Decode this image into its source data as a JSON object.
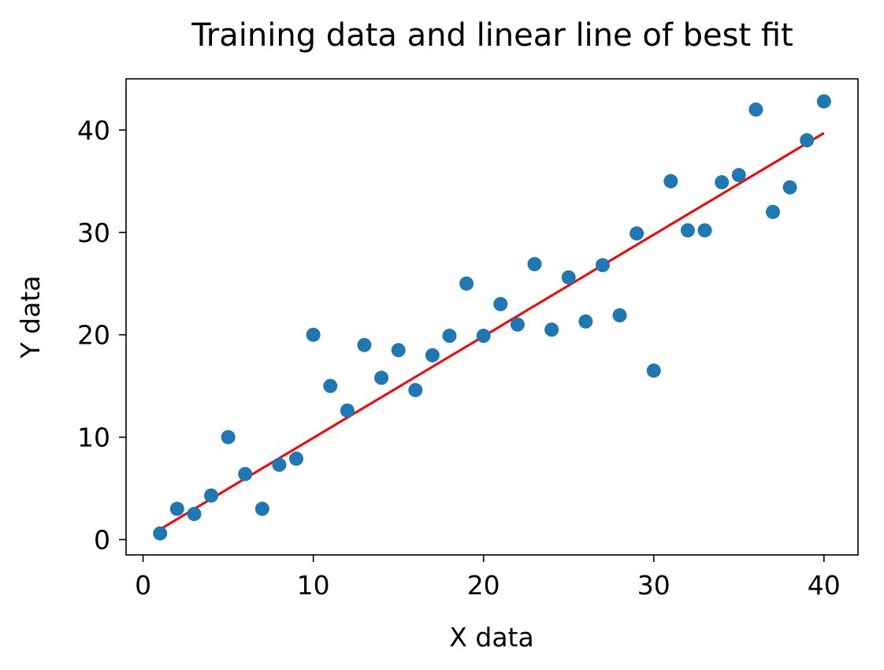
{
  "chart_data": {
    "type": "scatter",
    "title": "Training data and linear line of best fit",
    "xlabel": "X data",
    "ylabel": "Y data",
    "xlim": [
      -1,
      42
    ],
    "ylim": [
      -1.5,
      45
    ],
    "xticks": [
      0,
      10,
      20,
      30,
      40
    ],
    "yticks": [
      0,
      10,
      20,
      30,
      40
    ],
    "grid": false,
    "series": [
      {
        "kind": "scatter",
        "color": "#1f77b4",
        "x": [
          1,
          2,
          3,
          4,
          5,
          6,
          7,
          8,
          9,
          10,
          11,
          12,
          13,
          14,
          15,
          16,
          17,
          18,
          19,
          20,
          21,
          22,
          23,
          24,
          25,
          26,
          27,
          28,
          29,
          30,
          31,
          32,
          33,
          34,
          35,
          36,
          37,
          38,
          39,
          40
        ],
        "y": [
          0.6,
          3.0,
          2.5,
          4.3,
          10.0,
          6.4,
          3.0,
          7.3,
          7.9,
          20.0,
          15.0,
          12.6,
          19.0,
          15.8,
          18.5,
          14.6,
          18.0,
          19.9,
          25.0,
          19.9,
          23.0,
          21.0,
          26.9,
          20.5,
          25.6,
          21.3,
          26.8,
          21.9,
          29.9,
          16.5,
          35.0,
          30.2,
          30.2,
          34.9,
          35.6,
          42.0,
          32.0,
          34.4,
          39.0,
          42.8
        ]
      },
      {
        "kind": "line",
        "color": "#ff0000",
        "x": [
          1,
          40
        ],
        "y": [
          1.0,
          39.7
        ]
      }
    ]
  }
}
